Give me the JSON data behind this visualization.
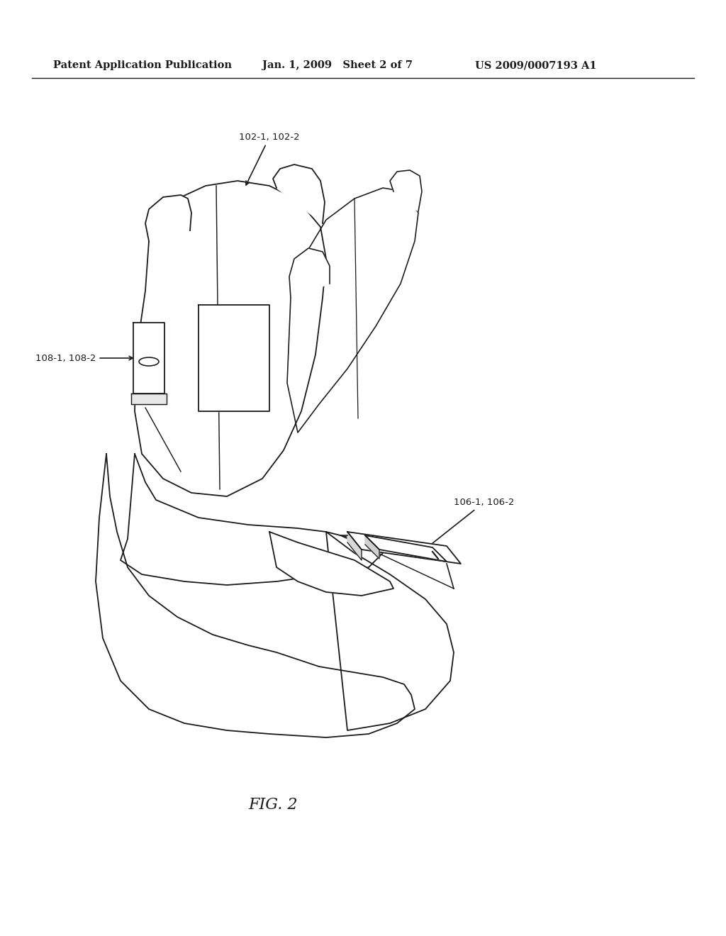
{
  "title_left": "Patent Application Publication",
  "title_center": "Jan. 1, 2009   Sheet 2 of 7",
  "title_right": "US 2009/0007193 A1",
  "fig_label": "FIG. 2",
  "label_102": "102-1, 102-2",
  "label_106": "106-1, 106-2",
  "label_108": "108-1, 108-2",
  "bg_color": "#ffffff",
  "line_color": "#1a1a1a",
  "text_color": "#1a1a1a",
  "header_fontsize": 10.5,
  "fig_label_fontsize": 16,
  "annotation_fontsize": 9.5
}
